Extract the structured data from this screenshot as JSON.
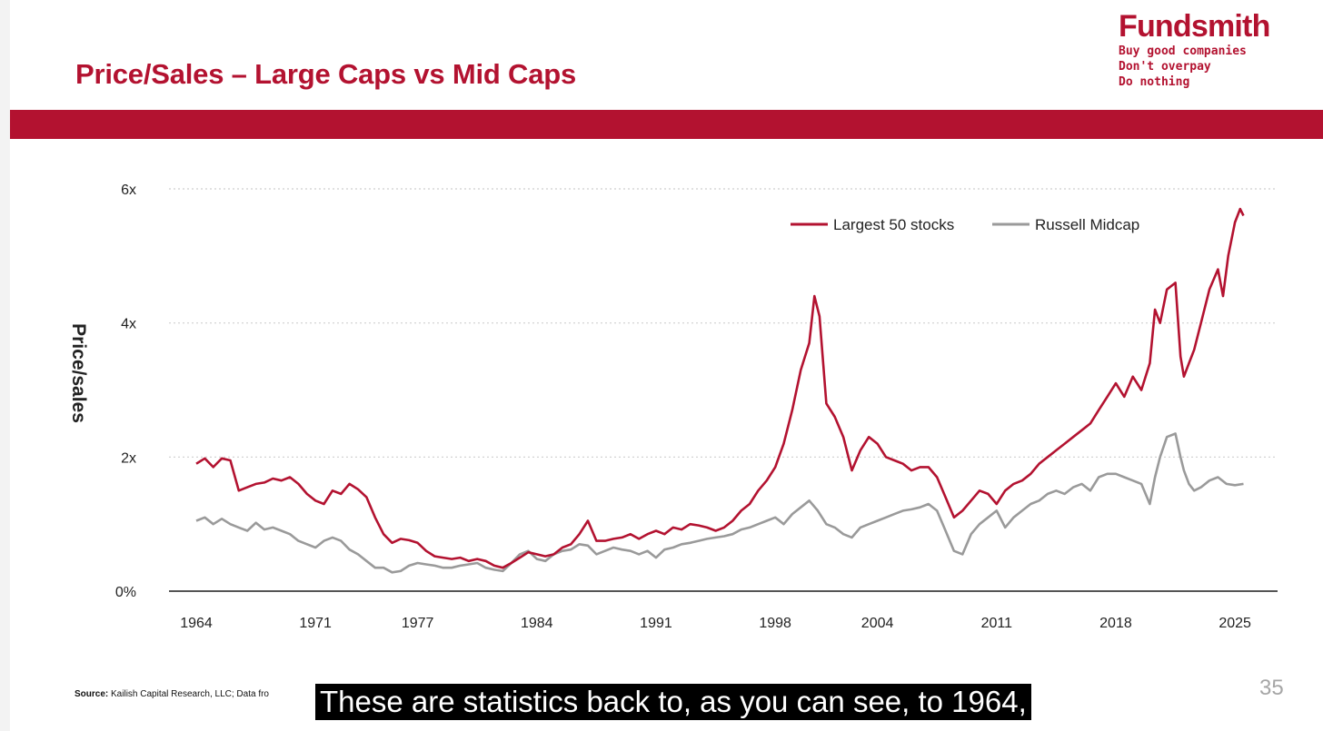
{
  "slide": {
    "title": "Price/Sales – Large Caps vs Mid Caps",
    "page_number": "35",
    "source_label": "Source:",
    "source_text": "Kailish Capital Research, LLC; Data fro",
    "caption": "These are statistics back to, as you can see, to 1964,"
  },
  "brand": {
    "name": "Fundsmith",
    "tagline": [
      "Buy good companies",
      "Don't overpay",
      "Do nothing"
    ]
  },
  "colors": {
    "accent": "#b31230",
    "large_series": "#b31230",
    "mid_series": "#9a9a9a",
    "axis": "#555555",
    "grid": "#cfcfcf",
    "text": "#222222"
  },
  "chart_data": {
    "type": "line",
    "title": "",
    "xlabel": "",
    "ylabel": "Price/sales",
    "xlim": [
      1962.4,
      2027.5
    ],
    "ylim": [
      0,
      6
    ],
    "y_ticks": [
      0,
      2,
      4,
      6
    ],
    "y_tick_labels": [
      "0%",
      "2x",
      "4x",
      "6x"
    ],
    "x_ticks": [
      1964,
      1971,
      1977,
      1984,
      1991,
      1998,
      2004,
      2011,
      2018,
      2025
    ],
    "x_tick_labels": [
      "1964",
      "1971",
      "1977",
      "1984",
      "1991",
      "1998",
      "2004",
      "2011",
      "2018",
      "2025"
    ],
    "grid": true,
    "legend_position": "top-right",
    "series": [
      {
        "name": "Largest 50 stocks",
        "x": [
          1964.0,
          1964.5,
          1965.0,
          1965.5,
          1966.0,
          1966.5,
          1967.0,
          1967.5,
          1968.0,
          1968.5,
          1969.0,
          1969.5,
          1970.0,
          1970.5,
          1971.0,
          1971.5,
          1972.0,
          1972.5,
          1973.0,
          1973.5,
          1974.0,
          1974.5,
          1975.0,
          1975.5,
          1976.0,
          1976.5,
          1977.0,
          1977.5,
          1978.0,
          1978.5,
          1979.0,
          1979.5,
          1980.0,
          1980.5,
          1981.0,
          1981.5,
          1982.0,
          1982.5,
          1983.0,
          1983.5,
          1984.0,
          1984.5,
          1985.0,
          1985.5,
          1986.0,
          1986.5,
          1987.0,
          1987.5,
          1988.0,
          1988.5,
          1989.0,
          1989.5,
          1990.0,
          1990.5,
          1991.0,
          1991.5,
          1992.0,
          1992.5,
          1993.0,
          1993.5,
          1994.0,
          1994.5,
          1995.0,
          1995.5,
          1996.0,
          1996.5,
          1997.0,
          1997.5,
          1998.0,
          1998.5,
          1999.0,
          1999.5,
          2000.0,
          2000.3,
          2000.6,
          2001.0,
          2001.5,
          2002.0,
          2002.5,
          2003.0,
          2003.5,
          2004.0,
          2004.5,
          2005.0,
          2005.5,
          2006.0,
          2006.5,
          2007.0,
          2007.5,
          2008.0,
          2008.5,
          2009.0,
          2009.5,
          2010.0,
          2010.5,
          2011.0,
          2011.5,
          2012.0,
          2012.5,
          2013.0,
          2013.5,
          2014.0,
          2014.5,
          2015.0,
          2015.5,
          2016.0,
          2016.5,
          2017.0,
          2017.5,
          2018.0,
          2018.5,
          2019.0,
          2019.5,
          2020.0,
          2020.3,
          2020.6,
          2021.0,
          2021.5,
          2021.8,
          2022.0,
          2022.3,
          2022.6,
          2023.0,
          2023.5,
          2024.0,
          2024.3,
          2024.6,
          2025.0,
          2025.3,
          2025.5
        ],
        "y": [
          1.9,
          1.98,
          1.85,
          1.98,
          1.95,
          1.5,
          1.55,
          1.6,
          1.62,
          1.68,
          1.65,
          1.7,
          1.6,
          1.45,
          1.35,
          1.3,
          1.5,
          1.45,
          1.6,
          1.52,
          1.4,
          1.1,
          0.85,
          0.72,
          0.78,
          0.76,
          0.72,
          0.6,
          0.52,
          0.5,
          0.48,
          0.5,
          0.45,
          0.48,
          0.45,
          0.38,
          0.35,
          0.42,
          0.5,
          0.58,
          0.55,
          0.52,
          0.55,
          0.65,
          0.7,
          0.85,
          1.05,
          0.75,
          0.75,
          0.78,
          0.8,
          0.85,
          0.78,
          0.85,
          0.9,
          0.85,
          0.95,
          0.92,
          1.0,
          0.98,
          0.95,
          0.9,
          0.95,
          1.05,
          1.2,
          1.3,
          1.5,
          1.65,
          1.85,
          2.2,
          2.7,
          3.3,
          3.7,
          4.4,
          4.1,
          2.8,
          2.6,
          2.3,
          1.8,
          2.1,
          2.3,
          2.2,
          2.0,
          1.95,
          1.9,
          1.8,
          1.85,
          1.85,
          1.7,
          1.4,
          1.1,
          1.2,
          1.35,
          1.5,
          1.45,
          1.3,
          1.5,
          1.6,
          1.65,
          1.75,
          1.9,
          2.0,
          2.1,
          2.2,
          2.3,
          2.4,
          2.5,
          2.7,
          2.9,
          3.1,
          2.9,
          3.2,
          3.0,
          3.4,
          4.2,
          4.0,
          4.5,
          4.6,
          3.5,
          3.2,
          3.4,
          3.6,
          4.0,
          4.5,
          4.8,
          4.4,
          5.0,
          5.5,
          5.7,
          5.6
        ]
      },
      {
        "name": "Russell Midcap",
        "x": [
          1964.0,
          1964.5,
          1965.0,
          1965.5,
          1966.0,
          1966.5,
          1967.0,
          1967.5,
          1968.0,
          1968.5,
          1969.0,
          1969.5,
          1970.0,
          1970.5,
          1971.0,
          1971.5,
          1972.0,
          1972.5,
          1973.0,
          1973.5,
          1974.0,
          1974.5,
          1975.0,
          1975.5,
          1976.0,
          1976.5,
          1977.0,
          1977.5,
          1978.0,
          1978.5,
          1979.0,
          1979.5,
          1980.0,
          1980.5,
          1981.0,
          1981.5,
          1982.0,
          1982.5,
          1983.0,
          1983.5,
          1984.0,
          1984.5,
          1985.0,
          1985.5,
          1986.0,
          1986.5,
          1987.0,
          1987.5,
          1988.0,
          1988.5,
          1989.0,
          1989.5,
          1990.0,
          1990.5,
          1991.0,
          1991.5,
          1992.0,
          1992.5,
          1993.0,
          1993.5,
          1994.0,
          1994.5,
          1995.0,
          1995.5,
          1996.0,
          1996.5,
          1997.0,
          1997.5,
          1998.0,
          1998.5,
          1999.0,
          1999.5,
          2000.0,
          2000.5,
          2001.0,
          2001.5,
          2002.0,
          2002.5,
          2003.0,
          2003.5,
          2004.0,
          2004.5,
          2005.0,
          2005.5,
          2006.0,
          2006.5,
          2007.0,
          2007.5,
          2008.0,
          2008.5,
          2009.0,
          2009.5,
          2010.0,
          2010.5,
          2011.0,
          2011.5,
          2012.0,
          2012.5,
          2013.0,
          2013.5,
          2014.0,
          2014.5,
          2015.0,
          2015.5,
          2016.0,
          2016.5,
          2017.0,
          2017.5,
          2018.0,
          2018.5,
          2019.0,
          2019.5,
          2020.0,
          2020.3,
          2020.6,
          2021.0,
          2021.5,
          2021.8,
          2022.0,
          2022.3,
          2022.6,
          2023.0,
          2023.5,
          2024.0,
          2024.5,
          2025.0,
          2025.5
        ],
        "y": [
          1.05,
          1.1,
          1.0,
          1.08,
          1.0,
          0.95,
          0.9,
          1.02,
          0.92,
          0.95,
          0.9,
          0.85,
          0.75,
          0.7,
          0.65,
          0.75,
          0.8,
          0.75,
          0.62,
          0.55,
          0.45,
          0.35,
          0.35,
          0.28,
          0.3,
          0.38,
          0.42,
          0.4,
          0.38,
          0.35,
          0.35,
          0.38,
          0.4,
          0.42,
          0.35,
          0.32,
          0.3,
          0.42,
          0.55,
          0.6,
          0.48,
          0.45,
          0.55,
          0.6,
          0.62,
          0.7,
          0.68,
          0.55,
          0.6,
          0.65,
          0.62,
          0.6,
          0.55,
          0.6,
          0.5,
          0.62,
          0.65,
          0.7,
          0.72,
          0.75,
          0.78,
          0.8,
          0.82,
          0.85,
          0.92,
          0.95,
          1.0,
          1.05,
          1.1,
          1.0,
          1.15,
          1.25,
          1.35,
          1.2,
          1.0,
          0.95,
          0.85,
          0.8,
          0.95,
          1.0,
          1.05,
          1.1,
          1.15,
          1.2,
          1.22,
          1.25,
          1.3,
          1.2,
          0.9,
          0.6,
          0.55,
          0.85,
          1.0,
          1.1,
          1.2,
          0.95,
          1.1,
          1.2,
          1.3,
          1.35,
          1.45,
          1.5,
          1.45,
          1.55,
          1.6,
          1.5,
          1.7,
          1.75,
          1.75,
          1.7,
          1.65,
          1.6,
          1.3,
          1.7,
          2.0,
          2.3,
          2.35,
          2.0,
          1.8,
          1.6,
          1.5,
          1.55,
          1.65,
          1.7,
          1.6,
          1.58,
          1.6
        ]
      }
    ]
  }
}
